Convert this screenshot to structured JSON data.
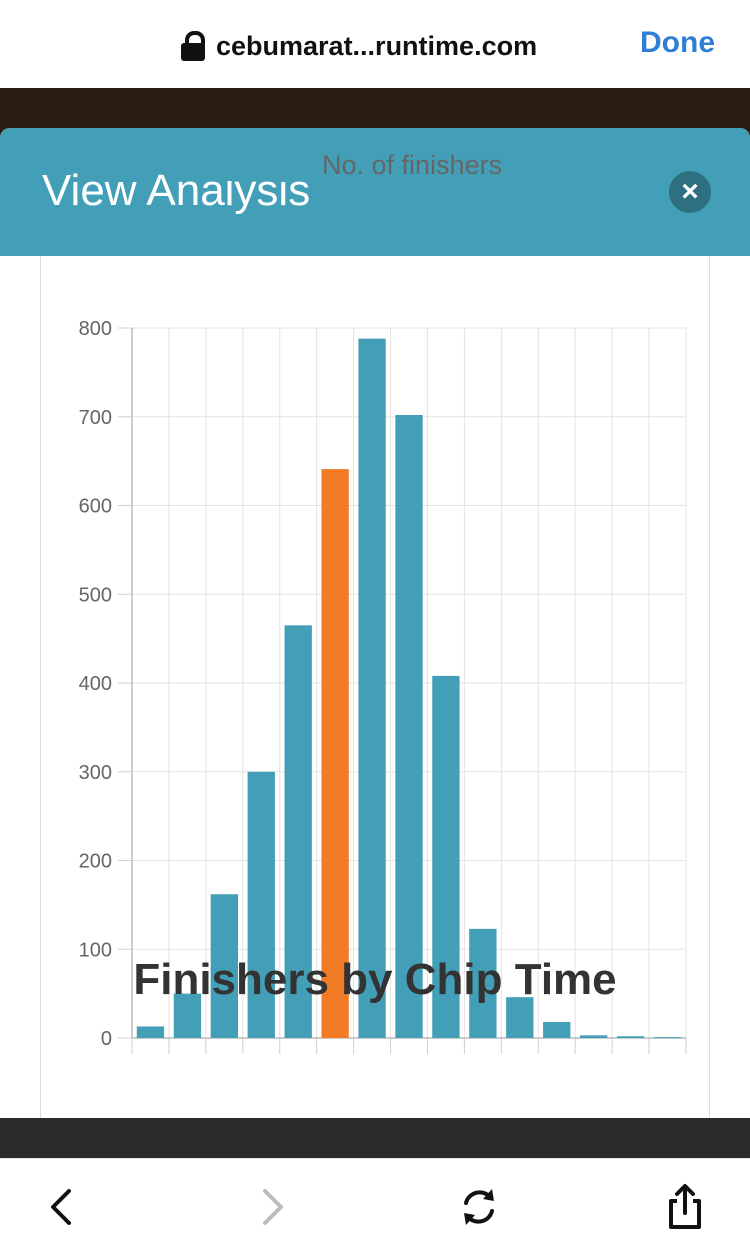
{
  "browser": {
    "url": "cebumarat...runtime.com",
    "done_label": "Done"
  },
  "modal": {
    "title": "View Analysis",
    "close_symbol": "×"
  },
  "chart_data": {
    "type": "bar",
    "title": "Finishers by Chip Time",
    "legend": "No. of finishers",
    "ylim": [
      0,
      800
    ],
    "y_ticks": [
      0,
      100,
      200,
      300,
      400,
      500,
      600,
      700,
      800
    ],
    "values": [
      13,
      50,
      162,
      300,
      465,
      641,
      788,
      702,
      408,
      123,
      46,
      18,
      3,
      2,
      1
    ],
    "highlight_index": 5,
    "colors": {
      "bar": "#439fb7",
      "highlight": "#f37b26"
    },
    "grid": true,
    "legend_position": "top"
  },
  "toolbar": {
    "back_icon": "chevron-left-icon",
    "forward_icon": "chevron-right-icon",
    "refresh_icon": "refresh-icon",
    "share_icon": "share-icon"
  }
}
